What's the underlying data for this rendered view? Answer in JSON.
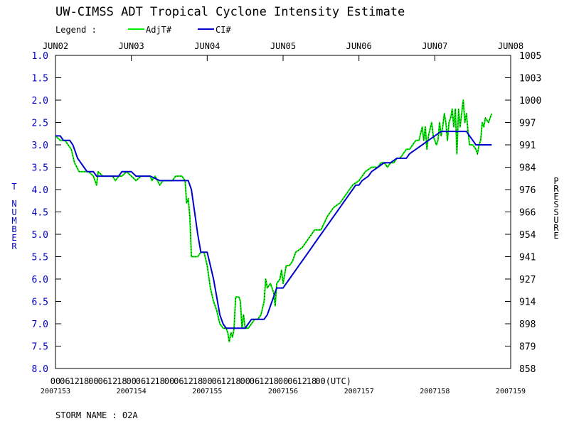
{
  "chart_data": {
    "type": "line",
    "title": "UW-CIMSS ADT Tropical Cyclone Intensity Estimate",
    "legend_label": "Legend :",
    "legend_position": "top-left",
    "series": [
      {
        "name": "AdjT#",
        "color": "#00ee00",
        "points": [
          [
            0,
            2.8
          ],
          [
            3,
            2.9
          ],
          [
            6,
            2.9
          ],
          [
            8,
            3.0
          ],
          [
            10,
            3.1
          ],
          [
            12,
            3.4
          ],
          [
            15,
            3.6
          ],
          [
            18,
            3.6
          ],
          [
            21,
            3.6
          ],
          [
            24,
            3.7
          ],
          [
            26,
            3.9
          ],
          [
            27,
            3.6
          ],
          [
            30,
            3.7
          ],
          [
            33,
            3.7
          ],
          [
            36,
            3.7
          ],
          [
            38,
            3.8
          ],
          [
            40,
            3.7
          ],
          [
            42,
            3.7
          ],
          [
            45,
            3.6
          ],
          [
            48,
            3.7
          ],
          [
            51,
            3.8
          ],
          [
            54,
            3.7
          ],
          [
            57,
            3.7
          ],
          [
            60,
            3.7
          ],
          [
            61,
            3.8
          ],
          [
            63,
            3.7
          ],
          [
            66,
            3.9
          ],
          [
            68,
            3.8
          ],
          [
            70,
            3.8
          ],
          [
            72,
            3.8
          ],
          [
            74,
            3.8
          ],
          [
            76,
            3.7
          ],
          [
            78,
            3.7
          ],
          [
            80,
            3.7
          ],
          [
            82,
            3.8
          ],
          [
            83,
            4.3
          ],
          [
            84,
            4.2
          ],
          [
            85,
            4.6
          ],
          [
            86,
            5.5
          ],
          [
            88,
            5.5
          ],
          [
            90,
            5.5
          ],
          [
            92,
            5.4
          ],
          [
            94,
            5.4
          ],
          [
            96,
            5.7
          ],
          [
            98,
            6.2
          ],
          [
            100,
            6.5
          ],
          [
            102,
            6.7
          ],
          [
            104,
            7.0
          ],
          [
            106,
            7.1
          ],
          [
            108,
            7.1
          ],
          [
            109,
            7.2
          ],
          [
            110,
            7.4
          ],
          [
            111,
            7.2
          ],
          [
            112,
            7.3
          ],
          [
            113,
            7.1
          ],
          [
            114,
            6.4
          ],
          [
            116,
            6.4
          ],
          [
            117,
            6.5
          ],
          [
            118,
            7.1
          ],
          [
            119,
            6.8
          ],
          [
            120,
            7.1
          ],
          [
            121,
            7.1
          ],
          [
            122,
            7.1
          ],
          [
            124,
            7.0
          ],
          [
            126,
            6.9
          ],
          [
            128,
            6.9
          ],
          [
            130,
            6.8
          ],
          [
            132,
            6.5
          ],
          [
            133,
            6.0
          ],
          [
            134,
            6.2
          ],
          [
            136,
            6.1
          ],
          [
            138,
            6.3
          ],
          [
            139,
            6.6
          ],
          [
            140,
            6.1
          ],
          [
            142,
            6.0
          ],
          [
            143,
            5.8
          ],
          [
            144,
            6.1
          ],
          [
            145,
            5.9
          ],
          [
            146,
            5.7
          ],
          [
            148,
            5.7
          ],
          [
            150,
            5.6
          ],
          [
            152,
            5.4
          ],
          [
            156,
            5.3
          ],
          [
            160,
            5.1
          ],
          [
            162,
            5.0
          ],
          [
            164,
            4.9
          ],
          [
            168,
            4.9
          ],
          [
            172,
            4.6
          ],
          [
            176,
            4.4
          ],
          [
            180,
            4.3
          ],
          [
            184,
            4.1
          ],
          [
            188,
            3.9
          ],
          [
            192,
            3.8
          ],
          [
            196,
            3.6
          ],
          [
            200,
            3.5
          ],
          [
            204,
            3.5
          ],
          [
            206,
            3.4
          ],
          [
            208,
            3.4
          ],
          [
            210,
            3.5
          ],
          [
            212,
            3.4
          ],
          [
            214,
            3.4
          ],
          [
            216,
            3.3
          ],
          [
            218,
            3.3
          ],
          [
            220,
            3.2
          ],
          [
            222,
            3.1
          ],
          [
            224,
            3.1
          ],
          [
            226,
            3.0
          ],
          [
            228,
            2.9
          ],
          [
            230,
            2.9
          ],
          [
            232,
            2.6
          ],
          [
            233,
            2.9
          ],
          [
            234,
            2.6
          ],
          [
            235,
            3.1
          ],
          [
            236,
            2.8
          ],
          [
            238,
            2.5
          ],
          [
            239,
            2.8
          ],
          [
            240,
            2.9
          ],
          [
            241,
            3.0
          ],
          [
            242,
            2.9
          ],
          [
            243,
            2.5
          ],
          [
            244,
            2.8
          ],
          [
            245,
            2.6
          ],
          [
            246,
            2.3
          ],
          [
            247,
            2.5
          ],
          [
            248,
            2.9
          ],
          [
            249,
            2.5
          ],
          [
            250,
            2.4
          ],
          [
            251,
            2.2
          ],
          [
            252,
            2.6
          ],
          [
            253,
            2.2
          ],
          [
            254,
            3.2
          ],
          [
            255,
            2.2
          ],
          [
            256,
            2.6
          ],
          [
            257,
            2.3
          ],
          [
            258,
            2.0
          ],
          [
            259,
            2.5
          ],
          [
            260,
            2.3
          ],
          [
            261,
            2.7
          ],
          [
            262,
            3.0
          ],
          [
            264,
            3.0
          ],
          [
            266,
            3.1
          ],
          [
            267,
            3.2
          ],
          [
            268,
            3.0
          ],
          [
            269,
            2.9
          ],
          [
            270,
            2.5
          ],
          [
            271,
            2.6
          ],
          [
            272,
            2.4
          ],
          [
            274,
            2.5
          ],
          [
            275,
            2.4
          ],
          [
            276,
            2.3
          ]
        ]
      },
      {
        "name": "CI#",
        "color": "#0000cc",
        "points": [
          [
            0,
            2.8
          ],
          [
            3,
            2.8
          ],
          [
            5,
            2.9
          ],
          [
            9,
            2.9
          ],
          [
            11,
            3.0
          ],
          [
            12,
            3.1
          ],
          [
            14,
            3.3
          ],
          [
            16,
            3.4
          ],
          [
            18,
            3.5
          ],
          [
            20,
            3.6
          ],
          [
            24,
            3.6
          ],
          [
            26,
            3.7
          ],
          [
            30,
            3.7
          ],
          [
            36,
            3.7
          ],
          [
            40,
            3.7
          ],
          [
            42,
            3.6
          ],
          [
            48,
            3.6
          ],
          [
            51,
            3.7
          ],
          [
            60,
            3.7
          ],
          [
            66,
            3.8
          ],
          [
            84,
            3.8
          ],
          [
            86,
            4.0
          ],
          [
            88,
            4.5
          ],
          [
            90,
            5.0
          ],
          [
            92,
            5.4
          ],
          [
            96,
            5.4
          ],
          [
            98,
            5.7
          ],
          [
            100,
            6.0
          ],
          [
            102,
            6.4
          ],
          [
            104,
            6.8
          ],
          [
            106,
            7.0
          ],
          [
            108,
            7.1
          ],
          [
            120,
            7.1
          ],
          [
            122,
            7.0
          ],
          [
            124,
            6.9
          ],
          [
            132,
            6.9
          ],
          [
            134,
            6.8
          ],
          [
            136,
            6.6
          ],
          [
            138,
            6.4
          ],
          [
            140,
            6.2
          ],
          [
            144,
            6.2
          ],
          [
            146,
            6.1
          ],
          [
            148,
            6.0
          ],
          [
            150,
            5.9
          ],
          [
            152,
            5.8
          ],
          [
            154,
            5.7
          ],
          [
            156,
            5.6
          ],
          [
            160,
            5.4
          ],
          [
            162,
            5.3
          ],
          [
            164,
            5.2
          ],
          [
            168,
            5.0
          ],
          [
            170,
            4.9
          ],
          [
            172,
            4.8
          ],
          [
            174,
            4.7
          ],
          [
            176,
            4.6
          ],
          [
            178,
            4.5
          ],
          [
            180,
            4.4
          ],
          [
            182,
            4.3
          ],
          [
            184,
            4.2
          ],
          [
            186,
            4.1
          ],
          [
            188,
            4.0
          ],
          [
            190,
            3.9
          ],
          [
            192,
            3.9
          ],
          [
            194,
            3.8
          ],
          [
            198,
            3.7
          ],
          [
            200,
            3.6
          ],
          [
            204,
            3.5
          ],
          [
            208,
            3.4
          ],
          [
            212,
            3.4
          ],
          [
            216,
            3.3
          ],
          [
            222,
            3.3
          ],
          [
            224,
            3.2
          ],
          [
            228,
            3.1
          ],
          [
            232,
            3.0
          ],
          [
            236,
            2.9
          ],
          [
            240,
            2.8
          ],
          [
            244,
            2.7
          ],
          [
            260,
            2.7
          ],
          [
            262,
            2.8
          ],
          [
            264,
            2.9
          ],
          [
            266,
            3.0
          ],
          [
            276,
            3.0
          ]
        ]
      }
    ],
    "x_unit": "hours since JUN02 00 UTC",
    "xlim": [
      0,
      288
    ],
    "ylim": [
      1.0,
      8.0
    ],
    "y_reversed": true,
    "grid": false,
    "top_date_labels": [
      "JUN02",
      "JUN03",
      "JUN04",
      "JUN05",
      "JUN06",
      "JUN07",
      "JUN08"
    ],
    "bottom_hour_labels": [
      "00",
      "06",
      "12",
      "18",
      "00",
      "06",
      "12",
      "18",
      "00",
      "06",
      "12",
      "18",
      "00",
      "06",
      "12",
      "18",
      "00",
      "06",
      "12",
      "18",
      "00",
      "06",
      "12",
      "18",
      "00",
      "06",
      "12",
      "18",
      "00(UTC)"
    ],
    "julian_labels": [
      "2007153",
      "2007154",
      "2007155",
      "2007156",
      "2007157",
      "2007158",
      "2007159"
    ],
    "y_left_ticks": [
      "1.0",
      "1.5",
      "2.0",
      "2.5",
      "3.0",
      "3.5",
      "4.0",
      "4.5",
      "5.0",
      "5.5",
      "6.0",
      "6.5",
      "7.0",
      "7.5",
      "8.0"
    ],
    "y_right_ticks": [
      "1005",
      "1003",
      "1000",
      "997",
      "991",
      "984",
      "976",
      "966",
      "954",
      "941",
      "927",
      "914",
      "898",
      "879",
      "858"
    ],
    "ylabel_left": "T NUMBER",
    "ylabel_right": "PRESSURE",
    "storm_label": "STORM NAME : 02A"
  }
}
